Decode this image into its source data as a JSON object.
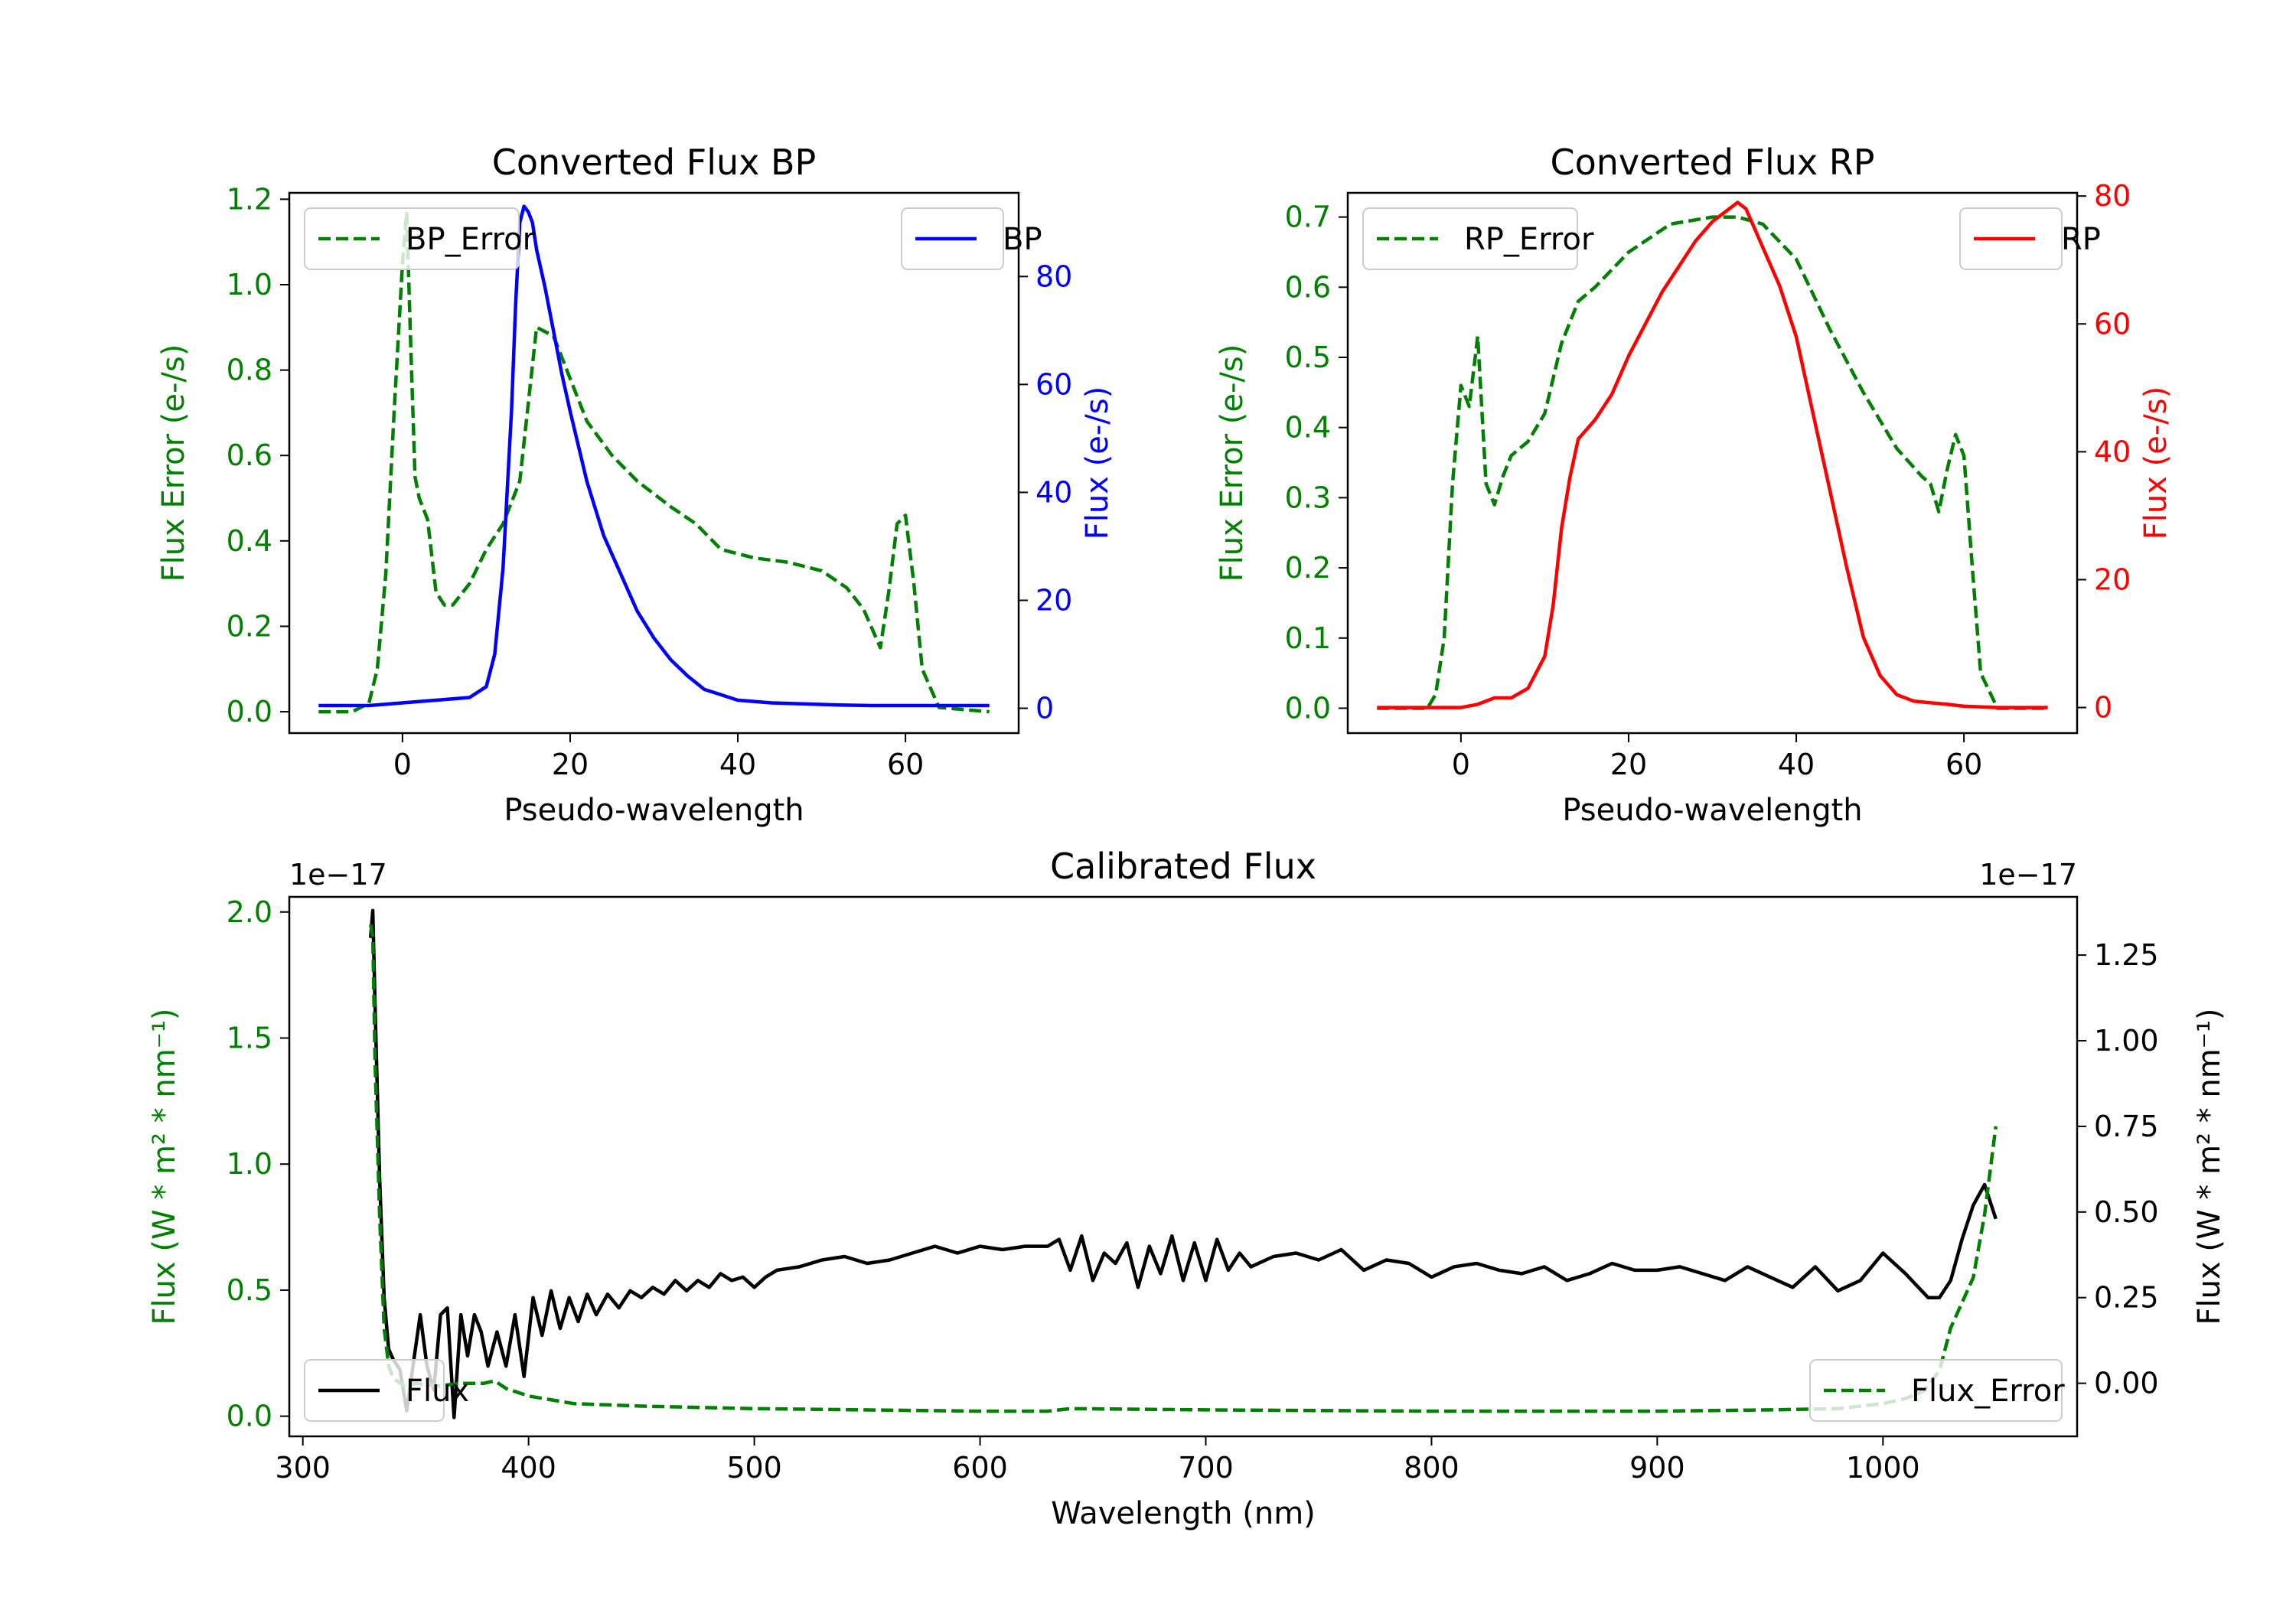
{
  "chart_data": [
    {
      "id": "bp",
      "type": "line",
      "title": "Converted Flux BP",
      "xlabel": "Pseudo-wavelength",
      "xlim": [
        -13.5,
        73.5
      ],
      "xticks": [
        0,
        20,
        40,
        60
      ],
      "xtick_labels": [
        "0",
        "20",
        "40",
        "60"
      ],
      "left_axis": {
        "label": "Flux Error (e-/s)",
        "color": "#008000",
        "ylim": [
          -0.05,
          1.215
        ],
        "ticks": [
          0.0,
          0.2,
          0.4,
          0.6,
          0.8,
          1.0,
          1.2
        ],
        "tick_labels": [
          "0.0",
          "0.2",
          "0.4",
          "0.6",
          "0.8",
          "1.0",
          "1.2"
        ]
      },
      "right_axis": {
        "label": "Flux (e-/s)",
        "color": "#0000ff",
        "ylim": [
          -4.6,
          95.5
        ],
        "ticks": [
          0,
          20,
          40,
          60,
          80
        ],
        "tick_labels": [
          "0",
          "20",
          "40",
          "60",
          "80"
        ]
      },
      "series": [
        {
          "name": "BP_Error",
          "axis": "left",
          "color": "#008000",
          "dash": true,
          "x": [
            -10,
            -6,
            -4,
            -3,
            -2,
            -1,
            0,
            0.5,
            1,
            1.5,
            2,
            3,
            4,
            5,
            6,
            8,
            10,
            12,
            14,
            16,
            18,
            20,
            22,
            25,
            28,
            32,
            35,
            38,
            42,
            46,
            50,
            53,
            55,
            57,
            58,
            59,
            60,
            61,
            62,
            64,
            70
          ],
          "values": [
            0.0,
            0.0,
            0.02,
            0.1,
            0.32,
            0.7,
            1.05,
            1.17,
            0.85,
            0.55,
            0.5,
            0.45,
            0.28,
            0.25,
            0.25,
            0.3,
            0.38,
            0.44,
            0.54,
            0.9,
            0.88,
            0.78,
            0.68,
            0.6,
            0.54,
            0.48,
            0.44,
            0.38,
            0.36,
            0.35,
            0.33,
            0.29,
            0.24,
            0.15,
            0.28,
            0.44,
            0.46,
            0.3,
            0.1,
            0.01,
            0.0
          ]
        },
        {
          "name": "BP",
          "axis": "right",
          "color": "#0000ff",
          "dash": false,
          "x": [
            -10,
            -4,
            0,
            4,
            8,
            10,
            11,
            12,
            13,
            13.5,
            14,
            14.5,
            15,
            15.5,
            16,
            17,
            18,
            19,
            20,
            22,
            24,
            26,
            28,
            30,
            32,
            34,
            36,
            38,
            40,
            44,
            48,
            52,
            56,
            60,
            64,
            70
          ],
          "values": [
            0.5,
            0.5,
            1,
            1.5,
            2,
            4,
            10,
            26,
            55,
            75,
            90,
            93,
            92,
            90,
            85,
            78,
            70,
            62,
            55,
            42,
            32,
            25,
            18,
            13,
            9,
            6,
            3.5,
            2.5,
            1.5,
            1,
            0.8,
            0.6,
            0.5,
            0.5,
            0.5,
            0.5
          ]
        }
      ],
      "legends": [
        {
          "position": "upper left",
          "entries": [
            "BP_Error"
          ]
        },
        {
          "position": "upper right",
          "entries": [
            "BP"
          ]
        }
      ]
    },
    {
      "id": "rp",
      "type": "line",
      "title": "Converted Flux RP",
      "xlabel": "Pseudo-wavelength",
      "xlim": [
        -13.5,
        73.5
      ],
      "xticks": [
        0,
        20,
        40,
        60
      ],
      "xtick_labels": [
        "0",
        "20",
        "40",
        "60"
      ],
      "left_axis": {
        "label": "Flux Error (e-/s)",
        "color": "#008000",
        "ylim": [
          -0.0355,
          0.7345
        ],
        "ticks": [
          0.0,
          0.1,
          0.2,
          0.3,
          0.4,
          0.5,
          0.6,
          0.7
        ],
        "tick_labels": [
          "0.0",
          "0.1",
          "0.2",
          "0.3",
          "0.4",
          "0.5",
          "0.6",
          "0.7"
        ]
      },
      "right_axis": {
        "label": "Flux (e-/s)",
        "color": "#ff0000",
        "ylim": [
          -4.0,
          80.5
        ],
        "ticks": [
          0,
          20,
          40,
          60,
          80
        ],
        "tick_labels": [
          "0",
          "20",
          "40",
          "60",
          "80"
        ]
      },
      "series": [
        {
          "name": "RP_Error",
          "axis": "left",
          "color": "#008000",
          "dash": true,
          "x": [
            -10,
            -4,
            -3,
            -2,
            -1,
            0,
            1,
            1.5,
            2,
            3,
            4,
            5,
            6,
            8,
            10,
            12,
            14,
            16,
            20,
            25,
            30,
            33,
            36,
            40,
            44,
            48,
            52,
            55,
            56,
            57,
            58,
            59,
            60,
            61,
            62,
            64,
            70
          ],
          "values": [
            0.0,
            0.0,
            0.02,
            0.1,
            0.32,
            0.46,
            0.43,
            0.48,
            0.53,
            0.32,
            0.29,
            0.33,
            0.36,
            0.38,
            0.42,
            0.52,
            0.58,
            0.6,
            0.65,
            0.69,
            0.7,
            0.7,
            0.69,
            0.64,
            0.54,
            0.45,
            0.37,
            0.33,
            0.32,
            0.28,
            0.34,
            0.39,
            0.36,
            0.2,
            0.05,
            0.0,
            0.0
          ]
        },
        {
          "name": "RP",
          "axis": "right",
          "color": "#ff0000",
          "dash": false,
          "x": [
            -10,
            -4,
            0,
            2,
            4,
            6,
            8,
            10,
            11,
            12,
            13,
            14,
            16,
            18,
            20,
            22,
            24,
            26,
            28,
            30,
            32,
            33,
            34,
            36,
            38,
            40,
            42,
            44,
            46,
            48,
            50,
            52,
            54,
            58,
            60,
            64,
            70
          ],
          "values": [
            0,
            0,
            0,
            0.5,
            1.5,
            1.5,
            3,
            8,
            16,
            28,
            36,
            42,
            45,
            49,
            55,
            60,
            65,
            69,
            73,
            76,
            78,
            79,
            78,
            72,
            66,
            58,
            46,
            34,
            22,
            11,
            5,
            2,
            1,
            0.5,
            0.2,
            0,
            0
          ]
        }
      ],
      "legends": [
        {
          "position": "upper left",
          "entries": [
            "RP_Error"
          ]
        },
        {
          "position": "upper right",
          "entries": [
            "RP"
          ]
        }
      ]
    },
    {
      "id": "cal",
      "type": "line",
      "title": "Calibrated Flux",
      "xlabel": "Wavelength (nm)",
      "xlim": [
        294,
        1086
      ],
      "xticks": [
        300,
        400,
        500,
        600,
        700,
        800,
        900,
        1000
      ],
      "xtick_labels": [
        "300",
        "400",
        "500",
        "600",
        "700",
        "800",
        "900",
        "1000"
      ],
      "left_axis": {
        "label": "Flux (W * m² * nm⁻¹)",
        "color": "#008000",
        "offset_text": "1e−17",
        "ylim": [
          -0.08,
          2.06
        ],
        "ticks": [
          0.0,
          0.5,
          1.0,
          1.5,
          2.0
        ],
        "tick_labels": [
          "0.0",
          "0.5",
          "1.0",
          "1.5",
          "2.0"
        ]
      },
      "right_axis": {
        "label": "Flux (W * m² * nm⁻¹)",
        "color": "#000000",
        "offset_text": "1e−17",
        "ylim": [
          -0.155,
          1.42
        ],
        "ticks": [
          0.0,
          0.25,
          0.5,
          0.75,
          1.0,
          1.25
        ],
        "tick_labels": [
          "0.00",
          "0.25",
          "0.50",
          "0.75",
          "1.00",
          "1.25"
        ]
      },
      "series": [
        {
          "name": "Flux",
          "axis": "right",
          "color": "#000000",
          "dash": false,
          "x": [
            330,
            331,
            332,
            334,
            336,
            338,
            340,
            343,
            346,
            349,
            352,
            355,
            358,
            361,
            364,
            367,
            370,
            373,
            376,
            379,
            382,
            386,
            390,
            394,
            398,
            402,
            406,
            410,
            414,
            418,
            422,
            426,
            430,
            435,
            440,
            445,
            450,
            455,
            460,
            465,
            470,
            475,
            480,
            485,
            490,
            495,
            500,
            505,
            510,
            520,
            530,
            540,
            550,
            560,
            570,
            580,
            590,
            600,
            610,
            620,
            630,
            635,
            640,
            645,
            650,
            655,
            660,
            665,
            670,
            675,
            680,
            685,
            690,
            695,
            700,
            705,
            710,
            715,
            720,
            730,
            740,
            750,
            760,
            770,
            780,
            790,
            800,
            810,
            820,
            830,
            840,
            850,
            860,
            870,
            880,
            890,
            900,
            910,
            920,
            930,
            940,
            950,
            960,
            970,
            980,
            990,
            1000,
            1010,
            1020,
            1025,
            1030,
            1035,
            1040,
            1045,
            1050
          ],
          "values": [
            1.3,
            1.38,
            1.1,
            0.6,
            0.25,
            0.1,
            0.07,
            0.04,
            -0.08,
            0.06,
            0.2,
            0.05,
            -0.02,
            0.2,
            0.22,
            -0.1,
            0.2,
            0.08,
            0.2,
            0.15,
            0.05,
            0.15,
            0.05,
            0.2,
            0.02,
            0.25,
            0.14,
            0.27,
            0.16,
            0.25,
            0.18,
            0.26,
            0.2,
            0.26,
            0.22,
            0.27,
            0.25,
            0.28,
            0.26,
            0.3,
            0.27,
            0.3,
            0.28,
            0.32,
            0.3,
            0.31,
            0.28,
            0.31,
            0.33,
            0.34,
            0.36,
            0.37,
            0.35,
            0.36,
            0.38,
            0.4,
            0.38,
            0.4,
            0.39,
            0.4,
            0.4,
            0.42,
            0.33,
            0.43,
            0.3,
            0.38,
            0.35,
            0.41,
            0.28,
            0.4,
            0.32,
            0.43,
            0.3,
            0.41,
            0.3,
            0.42,
            0.33,
            0.38,
            0.34,
            0.37,
            0.38,
            0.36,
            0.39,
            0.33,
            0.36,
            0.35,
            0.31,
            0.34,
            0.35,
            0.33,
            0.32,
            0.34,
            0.3,
            0.32,
            0.35,
            0.33,
            0.33,
            0.34,
            0.32,
            0.3,
            0.34,
            0.31,
            0.28,
            0.34,
            0.27,
            0.3,
            0.38,
            0.32,
            0.25,
            0.25,
            0.3,
            0.42,
            0.52,
            0.58,
            0.48
          ]
        },
        {
          "name": "Flux_Error",
          "axis": "left",
          "color": "#008000",
          "dash": true,
          "x": [
            330,
            331,
            332,
            334,
            336,
            338,
            340,
            345,
            350,
            360,
            370,
            380,
            385,
            390,
            400,
            420,
            450,
            500,
            600,
            630,
            640,
            700,
            800,
            900,
            950,
            980,
            1000,
            1010,
            1018,
            1025,
            1030,
            1035,
            1040,
            1045,
            1050
          ],
          "values": [
            1.95,
            1.9,
            1.4,
            0.8,
            0.35,
            0.2,
            0.15,
            0.12,
            0.13,
            0.12,
            0.13,
            0.13,
            0.14,
            0.11,
            0.08,
            0.05,
            0.04,
            0.03,
            0.02,
            0.02,
            0.03,
            0.025,
            0.02,
            0.02,
            0.025,
            0.03,
            0.05,
            0.07,
            0.1,
            0.18,
            0.35,
            0.45,
            0.55,
            0.8,
            1.15
          ]
        }
      ],
      "legends": [
        {
          "position": "lower left",
          "entries": [
            "Flux"
          ]
        },
        {
          "position": "lower right",
          "entries": [
            "Flux_Error"
          ]
        }
      ]
    }
  ]
}
